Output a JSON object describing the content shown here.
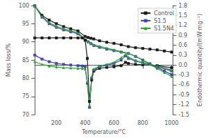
{
  "chart_data": {
    "type": "line",
    "xlabel": "Temperature/°C",
    "ylabel": "Mass loss/%",
    "y2label": "Endothermic quantity/(mW·mg⁻¹)",
    "xlim": [
      50,
      1010
    ],
    "xticks": [
      200,
      400,
      600,
      800,
      1000
    ],
    "ylim": [
      70,
      100
    ],
    "yticks": [
      70,
      75,
      80,
      85,
      90,
      95,
      100
    ],
    "y2lim": [
      -1.5,
      1.8
    ],
    "y2ticks": [
      -1.5,
      -1.2,
      -0.9,
      -0.6,
      -0.3,
      {
        "value": 0.0,
        "label": "0.0"
      },
      0.3,
      0.6,
      0.9,
      1.2,
      1.5,
      1.8
    ],
    "grid": false,
    "legend": "upper right",
    "series": [
      {
        "name": "Control",
        "color": "#1a1a1a",
        "marker": "square",
        "x": [
          50,
          100,
          150,
          200,
          250,
          300,
          350,
          400,
          420,
          440,
          460,
          500,
          550,
          600,
          650,
          700,
          750,
          800,
          850,
          900,
          950,
          1000
        ],
        "values": [
          99.9,
          97.3,
          96.0,
          95.0,
          94.2,
          93.6,
          93.0,
          91.5,
          91.2,
          91.0,
          90.8,
          90.3,
          89.9,
          89.6,
          89.2,
          88.7,
          88.4,
          88.2,
          88.0,
          87.8,
          87.5,
          87.2
        ]
      },
      {
        "name": "S1.5",
        "color": "#4444bb",
        "marker": "square",
        "x": [
          50,
          100,
          150,
          200,
          250,
          300,
          350,
          400,
          420,
          440,
          460,
          500,
          550,
          600,
          650,
          700,
          750,
          800,
          850,
          900,
          950,
          1000
        ],
        "values": [
          99.9,
          96.8,
          95.0,
          94.0,
          93.3,
          92.8,
          92.2,
          90.5,
          90.0,
          89.5,
          89.0,
          88.5,
          88.0,
          87.6,
          87.2,
          86.8,
          86.0,
          85.0,
          84.0,
          83.0,
          82.0,
          81.0
        ]
      },
      {
        "name": "S1.5N4",
        "color": "#22aa22",
        "marker": "triangle",
        "x": [
          50,
          100,
          150,
          200,
          250,
          300,
          350,
          400,
          420,
          440,
          460,
          500,
          550,
          600,
          650,
          700,
          750,
          800,
          850,
          900,
          950,
          1000
        ],
        "values": [
          99.9,
          97.0,
          95.3,
          94.3,
          93.6,
          93.1,
          92.5,
          90.7,
          90.2,
          89.7,
          89.2,
          88.8,
          88.3,
          87.8,
          87.3,
          86.9,
          86.0,
          84.9,
          83.8,
          82.7,
          81.6,
          80.5
        ]
      },
      {
        "axis": "y2",
        "color": "#1a1a1a",
        "marker": "square",
        "x": [
          50,
          100,
          150,
          200,
          250,
          300,
          350,
          380,
          400,
          415,
          430,
          445,
          460,
          500,
          550,
          600,
          650,
          680,
          700,
          750,
          800,
          900,
          1000
        ],
        "values": [
          0.82,
          0.82,
          0.82,
          0.82,
          0.82,
          0.82,
          0.82,
          0.82,
          0.75,
          0.2,
          -1.1,
          -0.45,
          -0.18,
          -0.1,
          -0.07,
          -0.05,
          -0.02,
          0.08,
          0.05,
          0.02,
          0.01,
          -0.02,
          -0.08
        ]
      },
      {
        "axis": "y2",
        "color": "#4444bb",
        "marker": "square",
        "x": [
          50,
          100,
          150,
          200,
          250,
          300,
          350,
          380,
          400,
          415,
          430,
          445,
          460,
          500,
          550,
          600,
          650,
          680,
          700,
          750,
          800,
          900,
          1000
        ],
        "values": [
          0.3,
          0.18,
          0.1,
          0.05,
          0.02,
          0.0,
          -0.02,
          -0.03,
          -0.05,
          -0.55,
          -1.28,
          -0.4,
          -0.15,
          -0.05,
          -0.01,
          0.05,
          0.15,
          0.28,
          0.2,
          0.12,
          0.06,
          -0.05,
          -0.18
        ]
      },
      {
        "axis": "y2",
        "color": "#22aa22",
        "marker": "triangle",
        "x": [
          50,
          100,
          150,
          200,
          250,
          300,
          350,
          380,
          400,
          415,
          430,
          445,
          460,
          500,
          550,
          600,
          650,
          680,
          700,
          750,
          800,
          900,
          1000
        ],
        "values": [
          0.1,
          0.02,
          -0.03,
          -0.06,
          -0.08,
          -0.09,
          -0.1,
          -0.1,
          -0.12,
          -0.5,
          -1.22,
          -0.35,
          -0.12,
          -0.03,
          0.02,
          0.08,
          0.22,
          0.32,
          0.24,
          0.14,
          0.07,
          -0.03,
          -0.15
        ]
      }
    ]
  }
}
